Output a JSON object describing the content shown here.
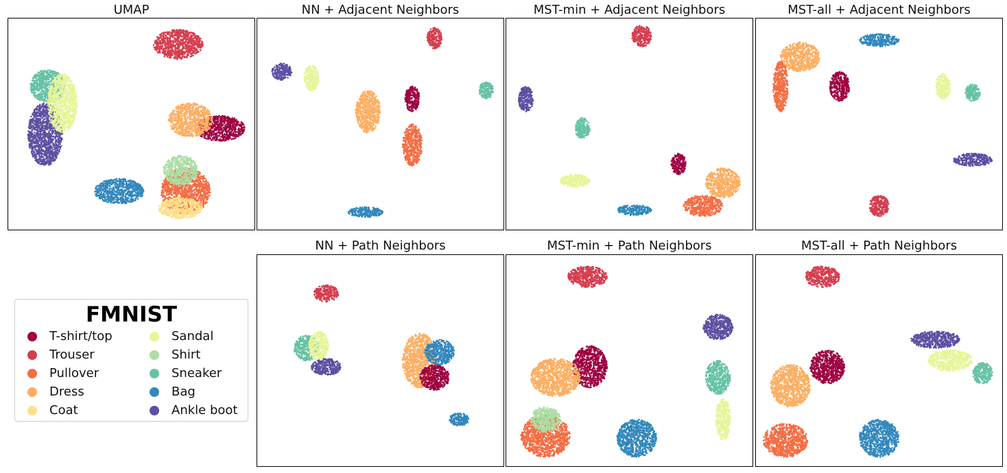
{
  "chart_data": [
    {
      "type": "scatter",
      "title": "UMAP",
      "clusters": [
        {
          "class": "Trouser",
          "x": 0.69,
          "y": 0.88,
          "rx": 0.1,
          "ry": 0.07
        },
        {
          "class": "Ankle boot",
          "x": 0.15,
          "y": 0.45,
          "rx": 0.07,
          "ry": 0.15
        },
        {
          "class": "Sneaker",
          "x": 0.16,
          "y": 0.68,
          "rx": 0.07,
          "ry": 0.08
        },
        {
          "class": "Sandal",
          "x": 0.22,
          "y": 0.6,
          "rx": 0.06,
          "ry": 0.14
        },
        {
          "class": "T-shirt/top",
          "x": 0.86,
          "y": 0.48,
          "rx": 0.1,
          "ry": 0.06
        },
        {
          "class": "Dress",
          "x": 0.74,
          "y": 0.52,
          "rx": 0.09,
          "ry": 0.08
        },
        {
          "class": "Pullover",
          "x": 0.72,
          "y": 0.18,
          "rx": 0.1,
          "ry": 0.11
        },
        {
          "class": "Coat",
          "x": 0.7,
          "y": 0.1,
          "rx": 0.09,
          "ry": 0.05
        },
        {
          "class": "Shirt",
          "x": 0.7,
          "y": 0.28,
          "rx": 0.07,
          "ry": 0.07
        },
        {
          "class": "Bag",
          "x": 0.45,
          "y": 0.18,
          "rx": 0.1,
          "ry": 0.06
        }
      ]
    },
    {
      "type": "scatter",
      "title": "NN + Adjacent Neighbors",
      "clusters": [
        {
          "class": "Trouser",
          "x": 0.72,
          "y": 0.91,
          "rx": 0.03,
          "ry": 0.05
        },
        {
          "class": "Ankle boot",
          "x": 0.1,
          "y": 0.75,
          "rx": 0.04,
          "ry": 0.04
        },
        {
          "class": "Sandal",
          "x": 0.22,
          "y": 0.72,
          "rx": 0.03,
          "ry": 0.06
        },
        {
          "class": "Sneaker",
          "x": 0.93,
          "y": 0.66,
          "rx": 0.03,
          "ry": 0.04
        },
        {
          "class": "Dress",
          "x": 0.45,
          "y": 0.56,
          "rx": 0.05,
          "ry": 0.1
        },
        {
          "class": "T-shirt/top",
          "x": 0.63,
          "y": 0.62,
          "rx": 0.03,
          "ry": 0.06
        },
        {
          "class": "Pullover",
          "x": 0.63,
          "y": 0.4,
          "rx": 0.04,
          "ry": 0.1
        },
        {
          "class": "Bag",
          "x": 0.44,
          "y": 0.08,
          "rx": 0.07,
          "ry": 0.025
        }
      ]
    },
    {
      "type": "scatter",
      "title": "MST-min + Adjacent Neighbors",
      "clusters": [
        {
          "class": "Trouser",
          "x": 0.55,
          "y": 0.92,
          "rx": 0.04,
          "ry": 0.05
        },
        {
          "class": "Ankle boot",
          "x": 0.08,
          "y": 0.62,
          "rx": 0.03,
          "ry": 0.06
        },
        {
          "class": "Sneaker",
          "x": 0.31,
          "y": 0.48,
          "rx": 0.03,
          "ry": 0.05
        },
        {
          "class": "T-shirt/top",
          "x": 0.7,
          "y": 0.31,
          "rx": 0.03,
          "ry": 0.05
        },
        {
          "class": "Sandal",
          "x": 0.28,
          "y": 0.23,
          "rx": 0.06,
          "ry": 0.03
        },
        {
          "class": "Dress",
          "x": 0.88,
          "y": 0.22,
          "rx": 0.07,
          "ry": 0.07
        },
        {
          "class": "Pullover",
          "x": 0.8,
          "y": 0.11,
          "rx": 0.08,
          "ry": 0.05
        },
        {
          "class": "Bag",
          "x": 0.52,
          "y": 0.09,
          "rx": 0.07,
          "ry": 0.025
        }
      ]
    },
    {
      "type": "scatter",
      "title": "MST-all + Adjacent Neighbors",
      "clusters": [
        {
          "class": "Dress",
          "x": 0.18,
          "y": 0.82,
          "rx": 0.08,
          "ry": 0.07
        },
        {
          "class": "Pullover",
          "x": 0.1,
          "y": 0.68,
          "rx": 0.03,
          "ry": 0.12
        },
        {
          "class": "Bag",
          "x": 0.5,
          "y": 0.9,
          "rx": 0.08,
          "ry": 0.03
        },
        {
          "class": "T-shirt/top",
          "x": 0.34,
          "y": 0.68,
          "rx": 0.04,
          "ry": 0.07
        },
        {
          "class": "Sandal",
          "x": 0.76,
          "y": 0.68,
          "rx": 0.03,
          "ry": 0.06
        },
        {
          "class": "Sneaker",
          "x": 0.88,
          "y": 0.65,
          "rx": 0.03,
          "ry": 0.04
        },
        {
          "class": "Ankle boot",
          "x": 0.88,
          "y": 0.33,
          "rx": 0.08,
          "ry": 0.03
        },
        {
          "class": "Trouser",
          "x": 0.5,
          "y": 0.11,
          "rx": 0.04,
          "ry": 0.05
        }
      ]
    },
    {
      "type": "scatter",
      "title": "NN + Path Neighbors",
      "clusters": [
        {
          "class": "Trouser",
          "x": 0.28,
          "y": 0.82,
          "rx": 0.05,
          "ry": 0.04
        },
        {
          "class": "Sneaker",
          "x": 0.2,
          "y": 0.56,
          "rx": 0.05,
          "ry": 0.06
        },
        {
          "class": "Sandal",
          "x": 0.25,
          "y": 0.57,
          "rx": 0.04,
          "ry": 0.07
        },
        {
          "class": "Ankle boot",
          "x": 0.28,
          "y": 0.47,
          "rx": 0.06,
          "ry": 0.04
        },
        {
          "class": "Dress",
          "x": 0.66,
          "y": 0.5,
          "rx": 0.07,
          "ry": 0.13
        },
        {
          "class": "T-shirt/top",
          "x": 0.72,
          "y": 0.42,
          "rx": 0.06,
          "ry": 0.06
        },
        {
          "class": "Bag",
          "x": 0.74,
          "y": 0.54,
          "rx": 0.06,
          "ry": 0.06
        },
        {
          "class": "Bag",
          "x": 0.82,
          "y": 0.22,
          "rx": 0.04,
          "ry": 0.03
        }
      ]
    },
    {
      "type": "scatter",
      "title": "MST-min + Path Neighbors",
      "clusters": [
        {
          "class": "Trouser",
          "x": 0.33,
          "y": 0.9,
          "rx": 0.08,
          "ry": 0.05
        },
        {
          "class": "T-shirt/top",
          "x": 0.34,
          "y": 0.47,
          "rx": 0.07,
          "ry": 0.1
        },
        {
          "class": "Dress",
          "x": 0.2,
          "y": 0.42,
          "rx": 0.1,
          "ry": 0.09
        },
        {
          "class": "Pullover",
          "x": 0.16,
          "y": 0.14,
          "rx": 0.1,
          "ry": 0.1
        },
        {
          "class": "Shirt",
          "x": 0.16,
          "y": 0.22,
          "rx": 0.06,
          "ry": 0.06
        },
        {
          "class": "Bag",
          "x": 0.53,
          "y": 0.13,
          "rx": 0.08,
          "ry": 0.09
        },
        {
          "class": "Ankle boot",
          "x": 0.86,
          "y": 0.66,
          "rx": 0.06,
          "ry": 0.06
        },
        {
          "class": "Sneaker",
          "x": 0.86,
          "y": 0.42,
          "rx": 0.05,
          "ry": 0.08
        },
        {
          "class": "Sandal",
          "x": 0.88,
          "y": 0.22,
          "rx": 0.03,
          "ry": 0.1
        }
      ]
    },
    {
      "type": "scatter",
      "title": "MST-all + Path Neighbors",
      "clusters": [
        {
          "class": "Trouser",
          "x": 0.27,
          "y": 0.9,
          "rx": 0.07,
          "ry": 0.05
        },
        {
          "class": "T-shirt/top",
          "x": 0.29,
          "y": 0.47,
          "rx": 0.07,
          "ry": 0.08
        },
        {
          "class": "Dress",
          "x": 0.14,
          "y": 0.38,
          "rx": 0.08,
          "ry": 0.1
        },
        {
          "class": "Pullover",
          "x": 0.12,
          "y": 0.12,
          "rx": 0.09,
          "ry": 0.08
        },
        {
          "class": "Bag",
          "x": 0.5,
          "y": 0.13,
          "rx": 0.08,
          "ry": 0.09
        },
        {
          "class": "Ankle boot",
          "x": 0.73,
          "y": 0.6,
          "rx": 0.1,
          "ry": 0.04
        },
        {
          "class": "Sandal",
          "x": 0.79,
          "y": 0.5,
          "rx": 0.09,
          "ry": 0.05
        },
        {
          "class": "Sneaker",
          "x": 0.92,
          "y": 0.44,
          "rx": 0.04,
          "ry": 0.05
        }
      ]
    }
  ],
  "legend": {
    "title": "FMNIST",
    "items": [
      {
        "label": "T-shirt/top",
        "color": "#9e0142"
      },
      {
        "label": "Trouser",
        "color": "#d53e4f"
      },
      {
        "label": "Pullover",
        "color": "#f46d43"
      },
      {
        "label": "Dress",
        "color": "#fdae61"
      },
      {
        "label": "Coat",
        "color": "#fee08b"
      },
      {
        "label": "Sandal",
        "color": "#e6f598"
      },
      {
        "label": "Shirt",
        "color": "#abdda4"
      },
      {
        "label": "Sneaker",
        "color": "#66c2a5"
      },
      {
        "label": "Bag",
        "color": "#3288bd"
      },
      {
        "label": "Ankle boot",
        "color": "#5e4fa2"
      }
    ]
  }
}
